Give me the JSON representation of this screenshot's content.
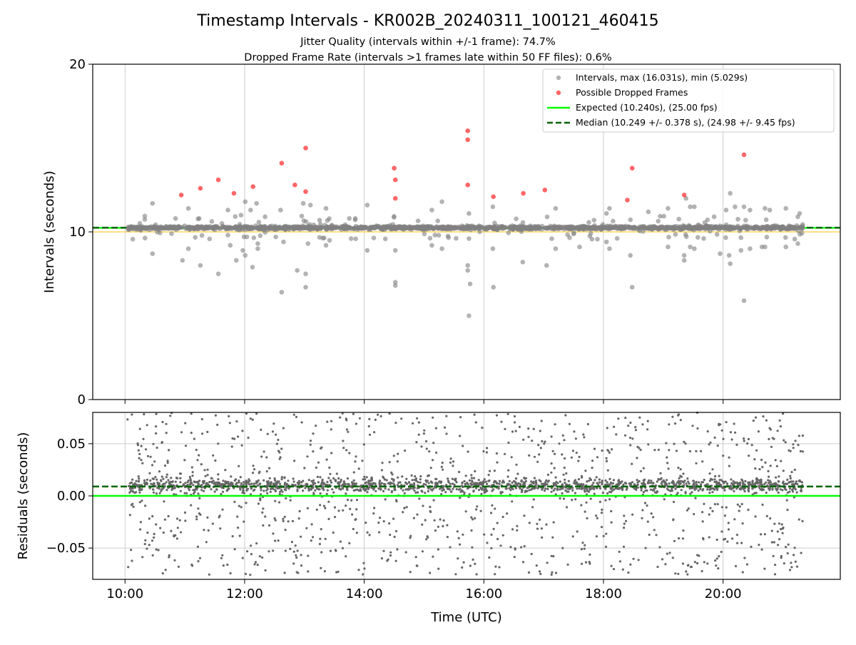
{
  "chart_data": {
    "title": "Timestamp Intervals - KR002B_20240311_100121_460415",
    "subtitle_lines": [
      "Jitter Quality (intervals within +/-1 frame): 74.7%",
      "Dropped Frame Rate (intervals >1 frames late within 50 FF files): 0.6%"
    ],
    "xlabel": "Time (UTC)",
    "x_tick_labels": [
      "10:00",
      "12:00",
      "14:00",
      "16:00",
      "18:00",
      "20:00"
    ],
    "x_ticks_hours": [
      10,
      12,
      14,
      16,
      18,
      20
    ],
    "xlim_hours": [
      9.46,
      21.96
    ],
    "grid": true,
    "panels": [
      {
        "name": "intervals",
        "type": "scatter",
        "ylabel": "Intervals (seconds)",
        "ylim": [
          0,
          20
        ],
        "y_ticks": [
          0,
          10,
          20
        ],
        "y_tick_labels": [
          "0",
          "10",
          "20"
        ],
        "legend_position": "top-right",
        "legend": [
          "Intervals, max (16.031s), min (5.029s)",
          "Possible Dropped Frames",
          "Expected (10.240s), (25.00 fps)",
          "Median (10.249 +/- 0.378 s), (24.98 +/- 9.45 fps)"
        ],
        "series": [
          {
            "name": "Intervals, max (16.031s), min (5.029s)",
            "color": "#808080",
            "outliers": [
              {
                "x": 10.46,
                "y": 11.7
              },
              {
                "x": 10.46,
                "y": 8.7
              },
              {
                "x": 10.96,
                "y": 8.3
              },
              {
                "x": 11.06,
                "y": 11.4
              },
              {
                "x": 11.06,
                "y": 9.0
              },
              {
                "x": 11.24,
                "y": 10.8
              },
              {
                "x": 11.26,
                "y": 8.0
              },
              {
                "x": 11.56,
                "y": 7.5
              },
              {
                "x": 11.72,
                "y": 11.3
              },
              {
                "x": 11.76,
                "y": 9.2
              },
              {
                "x": 11.86,
                "y": 8.3
              },
              {
                "x": 11.94,
                "y": 11.0
              },
              {
                "x": 11.97,
                "y": 8.9
              },
              {
                "x": 12.01,
                "y": 8.6
              },
              {
                "x": 12.01,
                "y": 11.8
              },
              {
                "x": 12.1,
                "y": 11.3
              },
              {
                "x": 12.13,
                "y": 7.9
              },
              {
                "x": 12.2,
                "y": 11.7
              },
              {
                "x": 12.22,
                "y": 9.3
              },
              {
                "x": 12.22,
                "y": 9.0
              },
              {
                "x": 12.6,
                "y": 11.3
              },
              {
                "x": 12.62,
                "y": 6.4
              },
              {
                "x": 12.65,
                "y": 9.4
              },
              {
                "x": 12.88,
                "y": 7.7
              },
              {
                "x": 12.98,
                "y": 11.7
              },
              {
                "x": 13.02,
                "y": 7.5
              },
              {
                "x": 13.02,
                "y": 6.7
              },
              {
                "x": 13.06,
                "y": 9.3
              },
              {
                "x": 13.1,
                "y": 11.6
              },
              {
                "x": 13.36,
                "y": 11.4
              },
              {
                "x": 13.36,
                "y": 9.2
              },
              {
                "x": 13.42,
                "y": 9.5
              },
              {
                "x": 13.75,
                "y": 10.8
              },
              {
                "x": 13.85,
                "y": 10.8
              },
              {
                "x": 13.78,
                "y": 9.6
              },
              {
                "x": 14.05,
                "y": 8.9
              },
              {
                "x": 14.05,
                "y": 11.6
              },
              {
                "x": 14.52,
                "y": 7.0
              },
              {
                "x": 14.52,
                "y": 6.8
              },
              {
                "x": 14.52,
                "y": 8.9
              },
              {
                "x": 15.13,
                "y": 11.3
              },
              {
                "x": 15.13,
                "y": 9.2
              },
              {
                "x": 15.3,
                "y": 11.8
              },
              {
                "x": 15.3,
                "y": 9.0
              },
              {
                "x": 15.73,
                "y": 8.0
              },
              {
                "x": 15.73,
                "y": 7.7
              },
              {
                "x": 15.75,
                "y": 9.6
              },
              {
                "x": 15.75,
                "y": 11.1
              },
              {
                "x": 15.77,
                "y": 6.9
              },
              {
                "x": 15.75,
                "y": 5.0
              },
              {
                "x": 16.15,
                "y": 11.5
              },
              {
                "x": 16.15,
                "y": 9.0
              },
              {
                "x": 16.16,
                "y": 6.7
              },
              {
                "x": 16.65,
                "y": 8.2
              },
              {
                "x": 17.05,
                "y": 8.0
              },
              {
                "x": 17.2,
                "y": 11.4
              },
              {
                "x": 17.2,
                "y": 9.0
              },
              {
                "x": 17.6,
                "y": 9.1
              },
              {
                "x": 18.05,
                "y": 11.1
              },
              {
                "x": 18.05,
                "y": 9.4
              },
              {
                "x": 18.1,
                "y": 11.4
              },
              {
                "x": 18.1,
                "y": 9.0
              },
              {
                "x": 18.45,
                "y": 8.6
              },
              {
                "x": 18.48,
                "y": 6.7
              },
              {
                "x": 18.75,
                "y": 11.2
              },
              {
                "x": 19.08,
                "y": 11.4
              },
              {
                "x": 19.08,
                "y": 9.1
              },
              {
                "x": 19.35,
                "y": 8.3
              },
              {
                "x": 19.35,
                "y": 8.6
              },
              {
                "x": 19.38,
                "y": 12.0
              },
              {
                "x": 19.45,
                "y": 11.5
              },
              {
                "x": 19.45,
                "y": 9.1
              },
              {
                "x": 19.52,
                "y": 11.5
              },
              {
                "x": 19.52,
                "y": 9.0
              },
              {
                "x": 19.85,
                "y": 10.9
              },
              {
                "x": 19.95,
                "y": 8.7
              },
              {
                "x": 20.05,
                "y": 11.3
              },
              {
                "x": 20.1,
                "y": 8.6
              },
              {
                "x": 20.12,
                "y": 8.1
              },
              {
                "x": 20.12,
                "y": 12.3
              },
              {
                "x": 20.2,
                "y": 11.5
              },
              {
                "x": 20.3,
                "y": 8.9
              },
              {
                "x": 20.35,
                "y": 5.9
              },
              {
                "x": 20.35,
                "y": 11.5
              },
              {
                "x": 20.45,
                "y": 11.3
              },
              {
                "x": 20.45,
                "y": 9.0
              },
              {
                "x": 20.65,
                "y": 9.1
              },
              {
                "x": 20.7,
                "y": 11.4
              },
              {
                "x": 20.7,
                "y": 9.1
              },
              {
                "x": 20.78,
                "y": 11.3
              },
              {
                "x": 21.05,
                "y": 11.4
              },
              {
                "x": 21.05,
                "y": 9.1
              },
              {
                "x": 21.25,
                "y": 10.9
              },
              {
                "x": 21.25,
                "y": 9.3
              },
              {
                "x": 21.28,
                "y": 11.1
              }
            ]
          },
          {
            "name": "Possible Dropped Frames",
            "color": "#ff0000",
            "points": [
              {
                "x": 10.94,
                "y": 12.2
              },
              {
                "x": 11.26,
                "y": 12.6
              },
              {
                "x": 11.56,
                "y": 13.1
              },
              {
                "x": 11.82,
                "y": 12.3
              },
              {
                "x": 12.14,
                "y": 12.7
              },
              {
                "x": 12.62,
                "y": 14.1
              },
              {
                "x": 12.84,
                "y": 12.8
              },
              {
                "x": 13.02,
                "y": 15.0
              },
              {
                "x": 13.02,
                "y": 12.4
              },
              {
                "x": 14.5,
                "y": 13.8
              },
              {
                "x": 14.52,
                "y": 13.1
              },
              {
                "x": 14.52,
                "y": 12.0
              },
              {
                "x": 15.73,
                "y": 16.03
              },
              {
                "x": 15.73,
                "y": 15.5
              },
              {
                "x": 15.73,
                "y": 12.8
              },
              {
                "x": 16.16,
                "y": 12.1
              },
              {
                "x": 16.66,
                "y": 12.3
              },
              {
                "x": 17.02,
                "y": 12.5
              },
              {
                "x": 18.4,
                "y": 11.9
              },
              {
                "x": 18.48,
                "y": 13.8
              },
              {
                "x": 19.35,
                "y": 12.2
              },
              {
                "x": 20.35,
                "y": 14.6
              }
            ]
          }
        ],
        "reference_lines": [
          {
            "name": "Expected (10.240s), (25.00 fps)",
            "y": 10.24,
            "color": "#00ff00",
            "style": "solid"
          },
          {
            "name": "Median (10.249 +/- 0.378 s), (24.98 +/- 9.45 fps)",
            "y": 10.249,
            "color": "#006400",
            "style": "dashed"
          },
          {
            "name": "",
            "y": 10.0,
            "color": "#ffcc33",
            "style": "solid"
          }
        ]
      },
      {
        "name": "residuals",
        "type": "scatter",
        "ylabel": "Residuals (seconds)",
        "ylim": [
          -0.08,
          0.08
        ],
        "y_ticks": [
          -0.05,
          0.0,
          0.05
        ],
        "y_tick_labels": [
          "−0.05",
          "0.00",
          "0.05"
        ],
        "series": [
          {
            "name": "",
            "color": "#666666",
            "x_range": [
              10.04,
              21.34
            ],
            "cluster_y": 0.01,
            "spread": 0.08
          }
        ],
        "reference_lines": [
          {
            "name": "Expected",
            "y": 0.0,
            "color": "#00ff00",
            "style": "solid"
          },
          {
            "name": "Median",
            "y": 0.009,
            "color": "#006400",
            "style": "dashed"
          }
        ]
      }
    ]
  }
}
